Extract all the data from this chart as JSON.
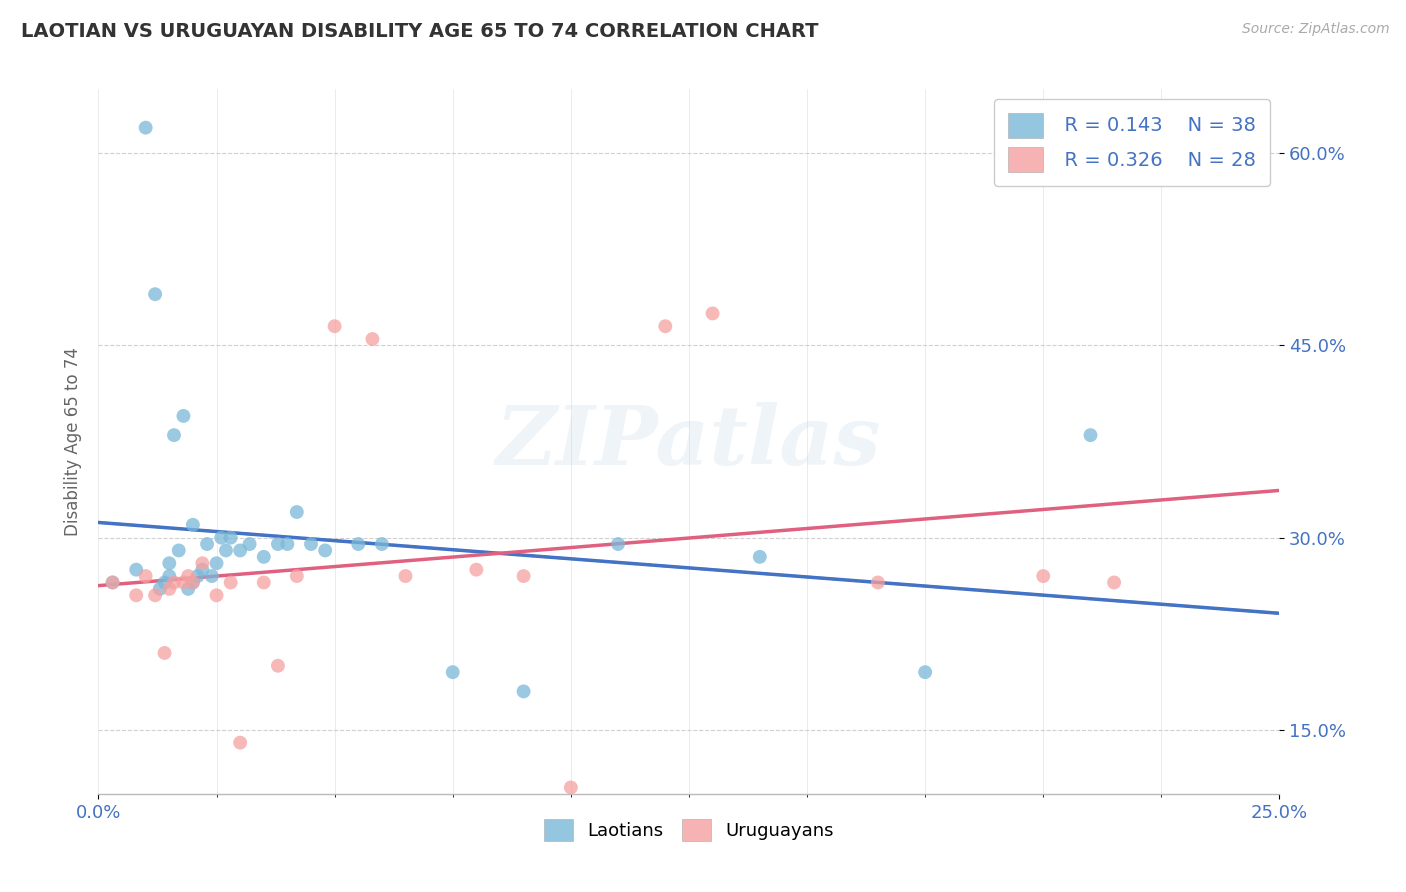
{
  "title": "LAOTIAN VS URUGUAYAN DISABILITY AGE 65 TO 74 CORRELATION CHART",
  "source_text": "Source: ZipAtlas.com",
  "ylabel": "Disability Age 65 to 74",
  "xlim": [
    0.0,
    0.25
  ],
  "ylim": [
    0.1,
    0.65
  ],
  "ytick_labels": [
    "15.0%",
    "30.0%",
    "45.0%",
    "60.0%"
  ],
  "ytick_values": [
    0.15,
    0.3,
    0.45,
    0.6
  ],
  "xtick_labels": [
    "0.0%",
    "25.0%"
  ],
  "xtick_values": [
    0.0,
    0.25
  ],
  "laotian_color": "#7ab8d9",
  "uruguayan_color": "#f5a0a0",
  "laotian_trend_color": "#4472c4",
  "uruguayan_trend_color": "#e06080",
  "laotian_dashed_color": "#a0bcd4",
  "R_laotian": 0.143,
  "N_laotian": 38,
  "R_uruguayan": 0.326,
  "N_uruguayan": 28,
  "laotian_x": [
    0.003,
    0.008,
    0.01,
    0.012,
    0.013,
    0.014,
    0.015,
    0.015,
    0.016,
    0.017,
    0.018,
    0.019,
    0.02,
    0.02,
    0.021,
    0.022,
    0.023,
    0.024,
    0.025,
    0.026,
    0.027,
    0.028,
    0.03,
    0.032,
    0.035,
    0.038,
    0.04,
    0.042,
    0.045,
    0.048,
    0.055,
    0.06,
    0.075,
    0.09,
    0.11,
    0.14,
    0.175,
    0.21
  ],
  "laotian_y": [
    0.265,
    0.275,
    0.62,
    0.49,
    0.26,
    0.265,
    0.27,
    0.28,
    0.38,
    0.29,
    0.395,
    0.26,
    0.265,
    0.31,
    0.27,
    0.275,
    0.295,
    0.27,
    0.28,
    0.3,
    0.29,
    0.3,
    0.29,
    0.295,
    0.285,
    0.295,
    0.295,
    0.32,
    0.295,
    0.29,
    0.295,
    0.295,
    0.195,
    0.18,
    0.295,
    0.285,
    0.195,
    0.38
  ],
  "uruguayan_x": [
    0.003,
    0.008,
    0.01,
    0.012,
    0.014,
    0.015,
    0.016,
    0.018,
    0.019,
    0.02,
    0.022,
    0.025,
    0.028,
    0.03,
    0.035,
    0.038,
    0.042,
    0.05,
    0.058,
    0.065,
    0.08,
    0.09,
    0.1,
    0.12,
    0.13,
    0.165,
    0.2,
    0.215
  ],
  "uruguayan_y": [
    0.265,
    0.255,
    0.27,
    0.255,
    0.21,
    0.26,
    0.265,
    0.265,
    0.27,
    0.265,
    0.28,
    0.255,
    0.265,
    0.14,
    0.265,
    0.2,
    0.27,
    0.465,
    0.455,
    0.27,
    0.275,
    0.27,
    0.105,
    0.465,
    0.475,
    0.265,
    0.27,
    0.265
  ],
  "watermark": "ZIPatlas",
  "background_color": "#ffffff",
  "grid_color": "#d0d0d0",
  "tick_color": "#4472c4",
  "legend_text_color": "#333333"
}
